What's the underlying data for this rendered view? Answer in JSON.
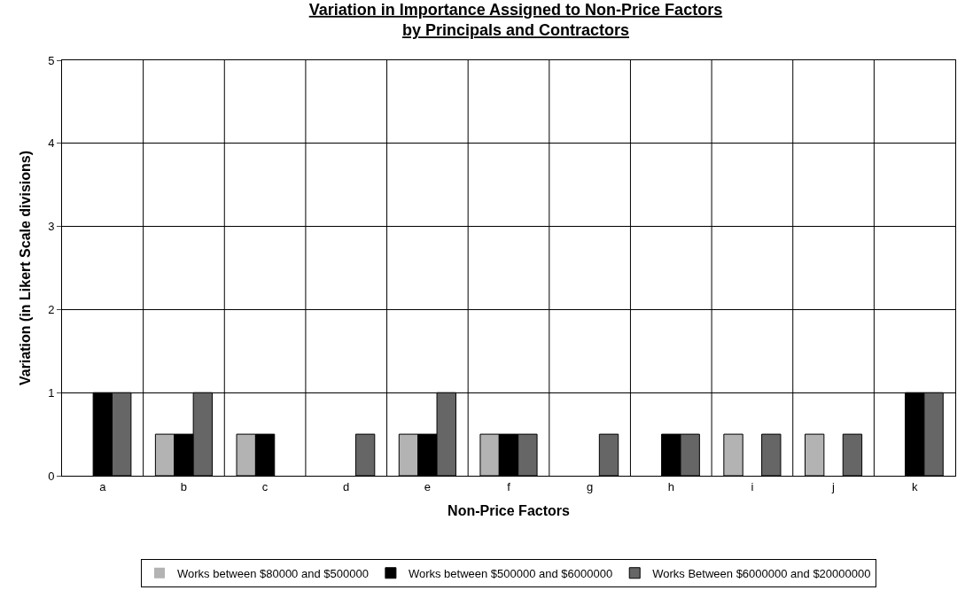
{
  "chart_data": {
    "type": "bar",
    "title": "Variation in Importance Assigned to Non-Price Factors\nby Principals and Contractors",
    "xlabel": "Non-Price Factors",
    "ylabel": "Variation (in Likert Scale divisions)",
    "categories": [
      "a",
      "b",
      "c",
      "d",
      "e",
      "f",
      "g",
      "h",
      "i",
      "j",
      "k"
    ],
    "series": [
      {
        "name": "Works between $80000 and $500000",
        "color": "#b3b3b3",
        "values": [
          0,
          0.5,
          0.5,
          0,
          0.5,
          0.5,
          0,
          0,
          0.5,
          0.5,
          0
        ]
      },
      {
        "name": "Works between $500000 and $6000000",
        "color": "#000000",
        "values": [
          1,
          0.5,
          0.5,
          0,
          0.5,
          0.5,
          0,
          0.5,
          0,
          0,
          1
        ]
      },
      {
        "name": "Works Between $6000000 and $20000000",
        "color": "#666666",
        "values": [
          1,
          1,
          0,
          0.5,
          1,
          0.5,
          0.5,
          0.5,
          0.5,
          0.5,
          1
        ]
      }
    ],
    "ylim": [
      0,
      5
    ],
    "yticks": [
      0,
      1,
      2,
      3,
      4,
      5
    ],
    "grid": true,
    "legend": "bottom"
  }
}
